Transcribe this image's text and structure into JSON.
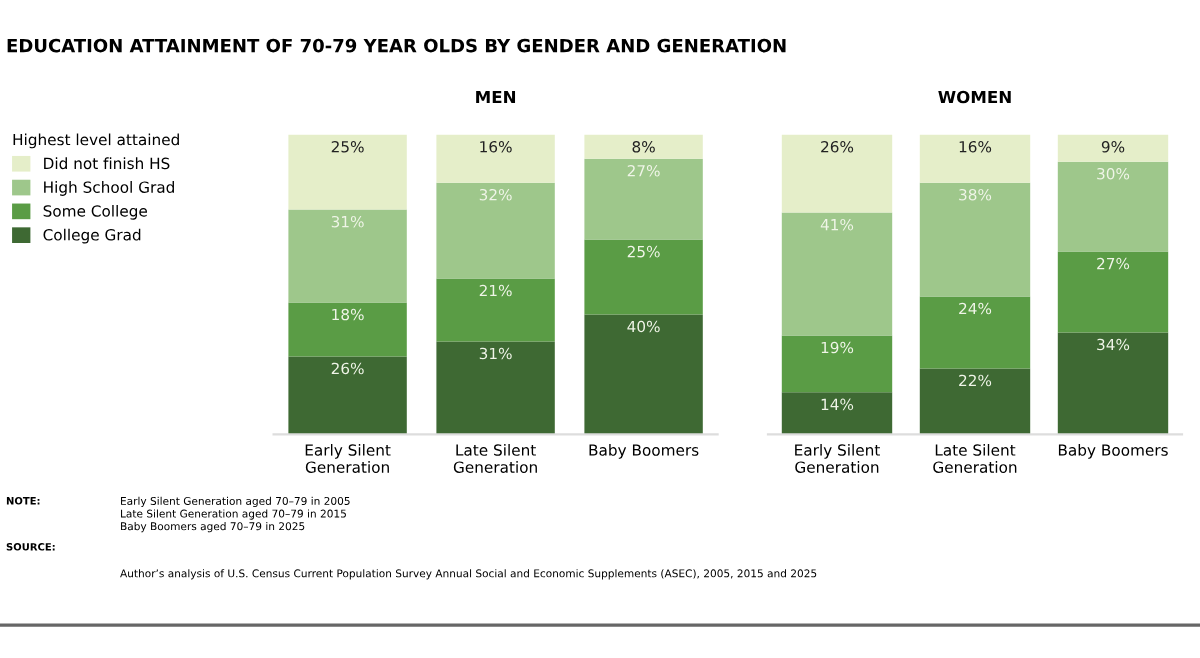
{
  "chart_data": [
    {
      "type": "bar",
      "stacked": true,
      "title": "MEN",
      "categories": [
        "Early Silent\nGeneration",
        "Late Silent\nGeneration",
        "Baby Boomers"
      ],
      "series": [
        {
          "name": "College Grad",
          "color": "#3e6933",
          "values": [
            26,
            31,
            40
          ],
          "value_labels": [
            "26%",
            "31%",
            "40%"
          ]
        },
        {
          "name": "Some College",
          "color": "#5a9c45",
          "values": [
            18,
            21,
            25
          ],
          "value_labels": [
            "18%",
            "21%",
            "25%"
          ]
        },
        {
          "name": "High School Grad",
          "color": "#9ec78b",
          "values": [
            31,
            32,
            27
          ],
          "value_labels": [
            "31%",
            "32%",
            "27%"
          ]
        },
        {
          "name": "Did not finish HS",
          "color": "#e5eec9",
          "values": [
            25,
            16,
            8
          ],
          "value_labels": [
            "25%",
            "16%",
            "8%"
          ]
        }
      ],
      "legend": "left",
      "legend_title": "Highest level attained",
      "annotations": [
        "EDUCATION ATTAINMENT OF 70-79 YEAR OLDS BY GENDER AND GENERATION",
        "NOTE:",
        "Early Silent Generation aged 70–79 in 2005\nLate Silent Generation aged 70–79 in 2015\nBaby Boomers aged 70–79 in 2025",
        "SOURCE:",
        "Author’s analysis of U.S. Census Current Population Survey Annual Social and Economic Supplements (ASEC), 2005, 2015 and 2025"
      ]
    },
    {
      "type": "bar",
      "stacked": true,
      "title": "WOMEN",
      "categories": [
        "Early Silent\nGeneration",
        "Late Silent\nGeneration",
        "Baby Boomers"
      ],
      "series": [
        {
          "color": "#3e6933",
          "values": [
            14,
            22,
            34
          ],
          "value_labels": [
            "14%",
            "22%",
            "34%"
          ]
        },
        {
          "color": "#5a9c45",
          "values": [
            19,
            24,
            27
          ],
          "value_labels": [
            "19%",
            "24%",
            "27%"
          ]
        },
        {
          "color": "#9ec78b",
          "values": [
            41,
            38,
            30
          ],
          "value_labels": [
            "41%",
            "38%",
            "30%"
          ]
        },
        {
          "color": "#e5eec9",
          "values": [
            26,
            16,
            9
          ],
          "value_labels": [
            "26%",
            "16%",
            "9%"
          ]
        }
      ]
    }
  ]
}
